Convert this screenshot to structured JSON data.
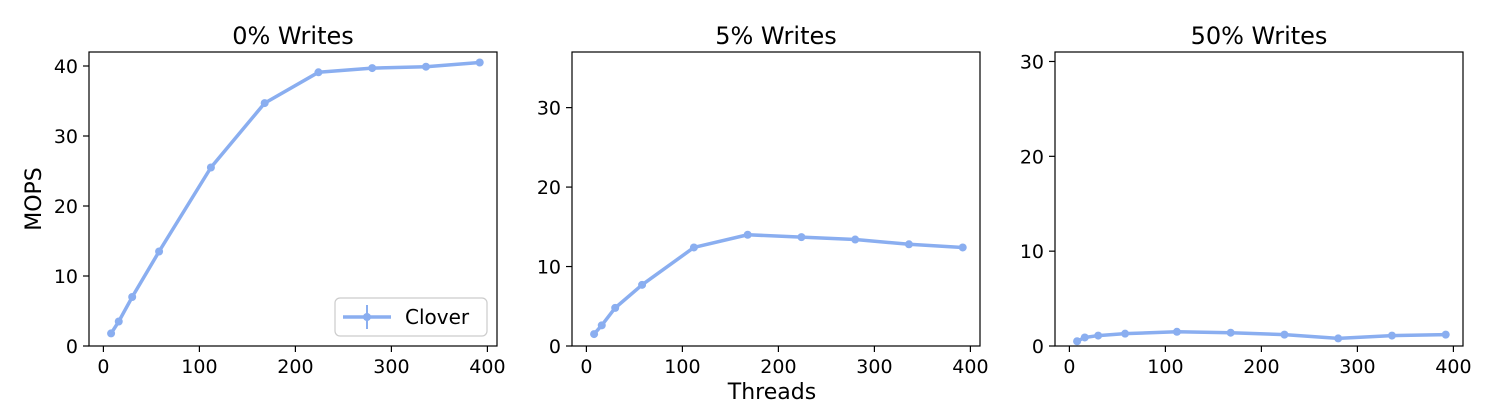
{
  "figure": {
    "xlabel": "Threads",
    "ylabel": "MOPS",
    "series_color": "#8aaef0",
    "legend": {
      "label": "Clover",
      "placement": "lower-right",
      "panel": 0
    }
  },
  "chart_data": [
    {
      "type": "line",
      "title": "0% Writes",
      "xlim": [
        -15,
        410
      ],
      "ylim": [
        0,
        42
      ],
      "xticks": [
        0,
        100,
        200,
        300,
        400
      ],
      "yticks": [
        0,
        10,
        20,
        30,
        40
      ],
      "series": [
        {
          "name": "Clover",
          "x": [
            8,
            16,
            30,
            58,
            112,
            168,
            224,
            280,
            336,
            392
          ],
          "y": [
            1.8,
            3.5,
            7.0,
            13.5,
            25.5,
            34.7,
            39.1,
            39.7,
            39.9,
            40.5
          ]
        }
      ]
    },
    {
      "type": "line",
      "title": "5% Writes",
      "xlim": [
        -15,
        410
      ],
      "ylim": [
        0,
        37
      ],
      "xticks": [
        0,
        100,
        200,
        300,
        400
      ],
      "yticks": [
        0,
        10,
        20,
        30
      ],
      "series": [
        {
          "name": "Clover",
          "x": [
            8,
            16,
            30,
            58,
            112,
            168,
            224,
            280,
            336,
            392
          ],
          "y": [
            1.5,
            2.6,
            4.8,
            7.7,
            12.4,
            14.0,
            13.7,
            13.4,
            12.8,
            12.4
          ]
        }
      ]
    },
    {
      "type": "line",
      "title": "50% Writes",
      "xlim": [
        -15,
        410
      ],
      "ylim": [
        0,
        31
      ],
      "xticks": [
        0,
        100,
        200,
        300,
        400
      ],
      "yticks": [
        0,
        10,
        20,
        30
      ],
      "series": [
        {
          "name": "Clover",
          "x": [
            8,
            16,
            30,
            58,
            112,
            168,
            224,
            280,
            336,
            392
          ],
          "y": [
            0.5,
            0.9,
            1.1,
            1.3,
            1.5,
            1.4,
            1.2,
            0.8,
            1.1,
            1.2
          ]
        }
      ]
    }
  ]
}
